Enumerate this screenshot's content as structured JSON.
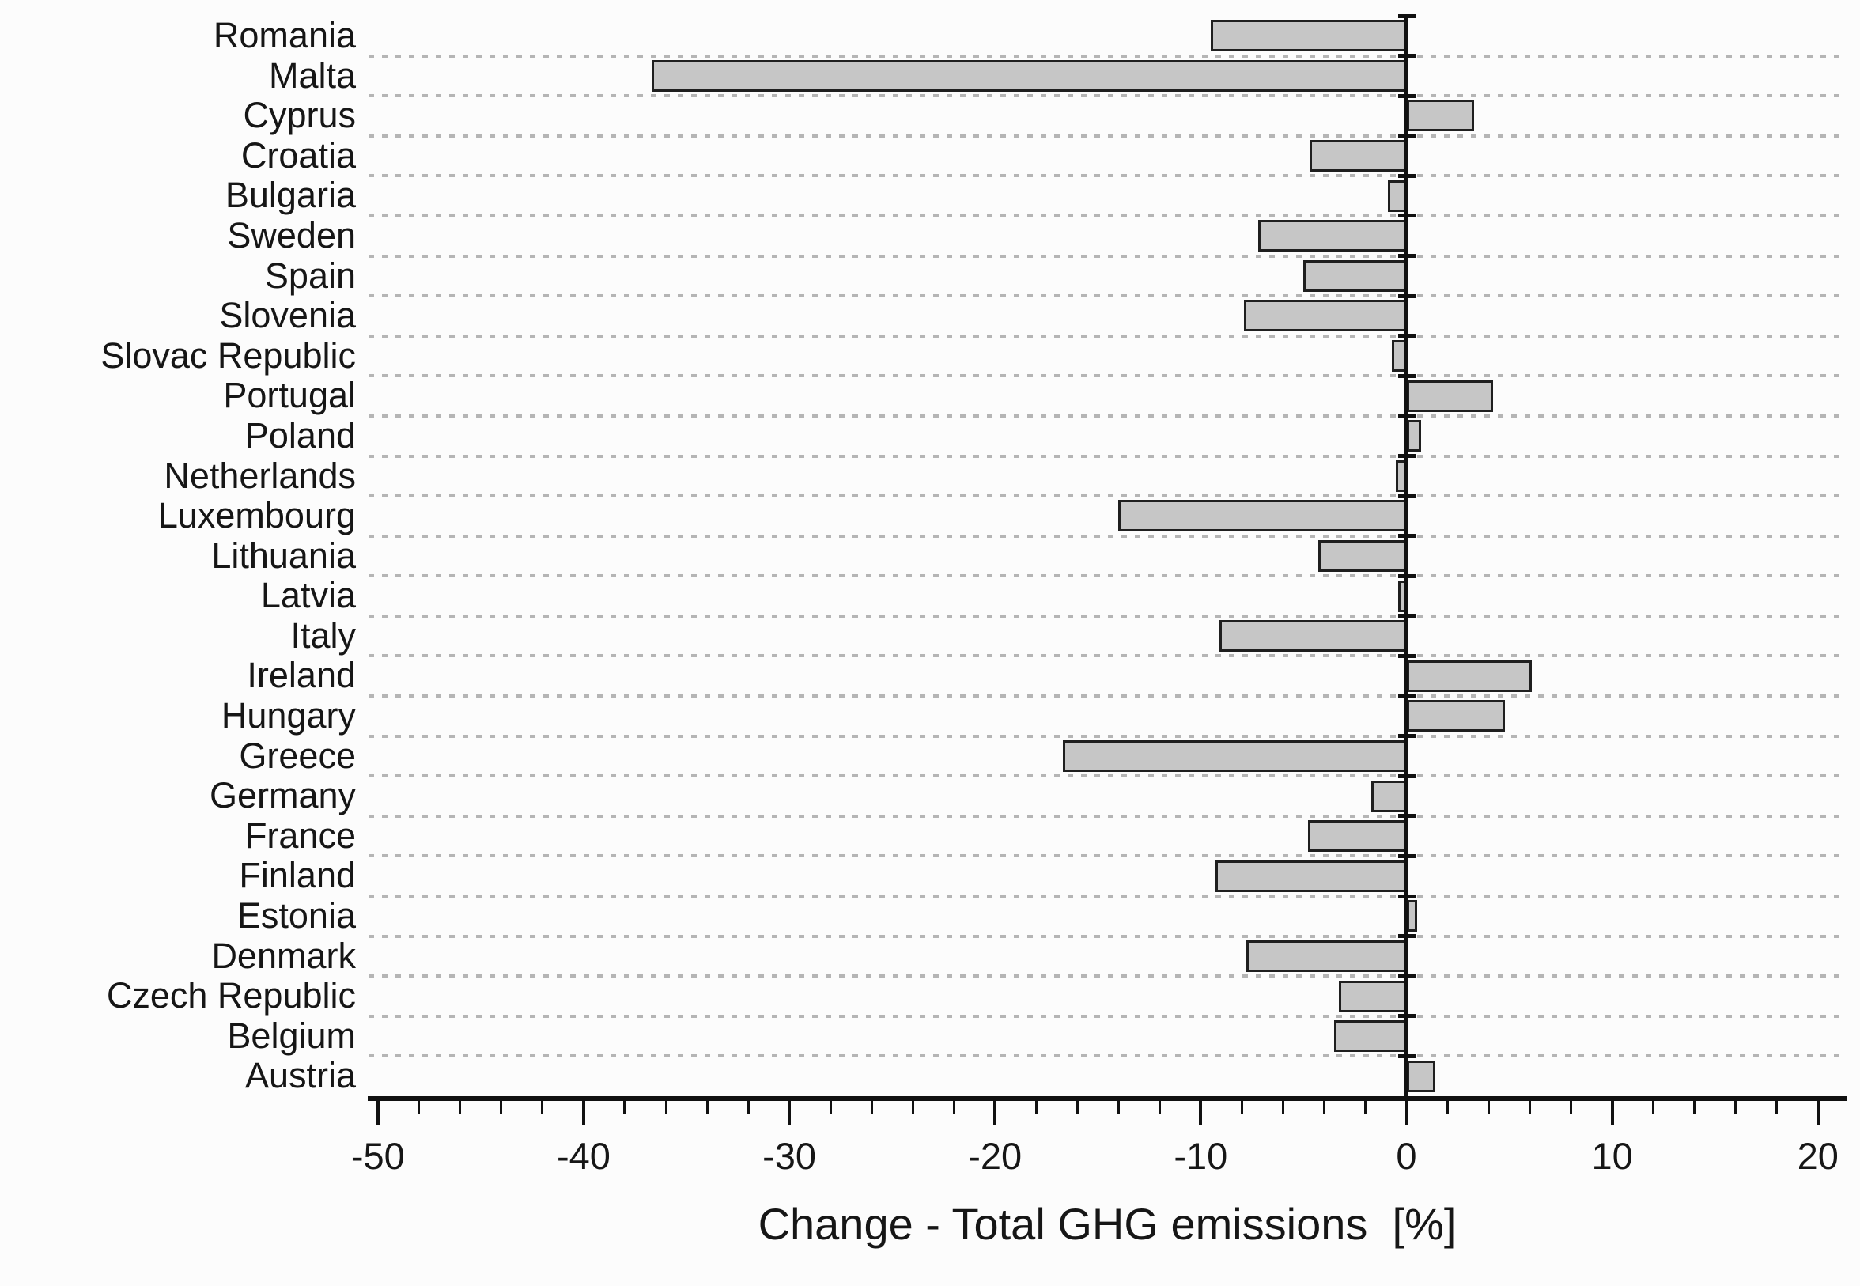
{
  "chart_data": {
    "type": "bar",
    "orientation": "horizontal",
    "title": "",
    "xlabel": "Change - Total GHG emissions  [%]",
    "ylabel": "",
    "xlim": [
      -50.3,
      21.2
    ],
    "x_major_ticks": [
      -50,
      -40,
      -30,
      -20,
      -10,
      0,
      10,
      20
    ],
    "x_minor_tick_step": 2,
    "grid": "horizontal dotted lines at category boundaries",
    "legend": "none",
    "categories": [
      "Romania",
      "Malta",
      "Cyprus",
      "Croatia",
      "Bulgaria",
      "Sweden",
      "Spain",
      "Slovenia",
      "Slovac Republic",
      "Portugal",
      "Poland",
      "Netherlands",
      "Luxembourg",
      "Lithuania",
      "Latvia",
      "Italy",
      "Ireland",
      "Hungary",
      "Greece",
      "Germany",
      "France",
      "Finland",
      "Estonia",
      "Denmark",
      "Czech Republic",
      "Belgium",
      "Austria"
    ],
    "values": [
      -9.5,
      -36.7,
      3.3,
      -4.7,
      -0.9,
      -7.2,
      -5.0,
      -7.9,
      -0.7,
      4.2,
      0.7,
      -0.5,
      -14.0,
      -4.3,
      -0.4,
      -9.1,
      6.1,
      4.8,
      -16.7,
      -1.7,
      -4.8,
      -9.3,
      0.5,
      -7.8,
      -3.3,
      -3.5,
      1.4
    ],
    "bar_fill_color": "#c6c6c6",
    "bar_border_color": "#1f1f1f",
    "axis_color": "#111111",
    "grid_color": "#b5b5b5",
    "background_color": "#fcfcfc"
  }
}
